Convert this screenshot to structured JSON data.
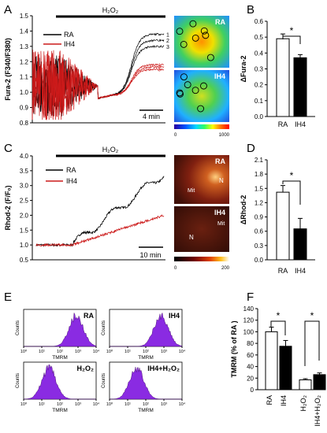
{
  "panel_labels": {
    "A": "A",
    "B": "B",
    "C": "C",
    "D": "D",
    "E": "E",
    "F": "F"
  },
  "colors": {
    "ra": "#000000",
    "ih4": "#cc1a1a",
    "hist_fill": "#8a2be2",
    "bar_open": "#ffffff",
    "bar_filled": "#000000"
  },
  "chart_data": [
    {
      "id": "A",
      "type": "line",
      "ylabel": "Fura-2 (F340/F380)",
      "ylim": [
        0.8,
        1.5
      ],
      "yticks": [
        0.8,
        0.9,
        1.0,
        1.1,
        1.2,
        1.3,
        1.4,
        1.5
      ],
      "stimulus": "H₂O₂",
      "scale_bar": "4 min",
      "legend_position": "top-left",
      "series": [
        {
          "name": "RA",
          "color": "#000000",
          "trace_labels": [
            "1",
            "2",
            "3"
          ],
          "plateau": [
            1.38,
            1.34,
            1.3
          ]
        },
        {
          "name": "IH4",
          "color": "#cc1a1a",
          "trace_labels": [
            "1",
            "2",
            "3"
          ],
          "plateau": [
            1.18,
            1.165,
            1.15
          ]
        }
      ],
      "images": [
        {
          "label": "RA"
        },
        {
          "label": "IH4"
        }
      ],
      "colorbar": {
        "min": "0",
        "max": "1000"
      }
    },
    {
      "id": "B",
      "type": "bar",
      "ylabel": "ΔFura-2",
      "categories": [
        "RA",
        "IH4"
      ],
      "values": [
        0.49,
        0.37
      ],
      "errors": [
        0.03,
        0.02
      ],
      "ylim": [
        0.0,
        0.6
      ],
      "yticks": [
        0.0,
        0.1,
        0.2,
        0.3,
        0.4,
        0.5,
        0.6
      ],
      "significance": "*"
    },
    {
      "id": "C",
      "type": "line",
      "ylabel": "Rhod-2 (F/F₀)",
      "ylim": [
        0.5,
        4.0
      ],
      "yticks": [
        0.5,
        1.0,
        1.5,
        2.0,
        2.5,
        3.0,
        3.5,
        4.0
      ],
      "stimulus": "H₂O₂",
      "scale_bar": "10 min",
      "legend_position": "top-left",
      "series": [
        {
          "name": "RA",
          "color": "#000000",
          "start": 1.0,
          "end": 3.4
        },
        {
          "name": "IH4",
          "color": "#cc1a1a",
          "start": 1.0,
          "end": 2.0
        }
      ],
      "images": [
        {
          "label": "RA",
          "marks": [
            "N",
            "Mit"
          ]
        },
        {
          "label": "IH4",
          "marks": [
            "Mit",
            "N"
          ]
        }
      ],
      "colorbar": {
        "min": "0",
        "max": "200"
      }
    },
    {
      "id": "D",
      "type": "bar",
      "ylabel": "ΔRhod-2",
      "categories": [
        "RA",
        "IH4"
      ],
      "values": [
        1.42,
        0.65
      ],
      "errors": [
        0.14,
        0.22
      ],
      "ylim": [
        0.0,
        2.1
      ],
      "yticks": [
        0.0,
        0.3,
        0.6,
        0.9,
        1.2,
        1.5,
        1.8,
        2.1
      ],
      "significance": "*"
    },
    {
      "id": "E",
      "type": "histogram",
      "xlabel": "TMRM",
      "ylabel": "Counts",
      "xtick_labels": [
        "10⁰",
        "10¹",
        "10²",
        "10³",
        "10⁴"
      ],
      "panels": [
        {
          "label": "RA",
          "peak_decade": 2.9
        },
        {
          "label": "IH4",
          "peak_decade": 2.85
        },
        {
          "label": "H₂O₂",
          "peak_decade": 1.4
        },
        {
          "label": "IH4+H₂O₂",
          "peak_decade": 1.5
        }
      ]
    },
    {
      "id": "F",
      "type": "bar",
      "ylabel": "TMRM (% of RA )",
      "categories": [
        "RA",
        "IH4",
        "H₂O₂",
        "IH4+H₂O₂"
      ],
      "values": [
        100,
        75,
        17,
        26
      ],
      "errors": [
        8,
        10,
        2,
        3
      ],
      "ylim": [
        0,
        140
      ],
      "yticks": [
        0,
        20,
        40,
        60,
        80,
        100,
        120,
        140
      ],
      "significance": [
        "*",
        "*"
      ]
    }
  ]
}
